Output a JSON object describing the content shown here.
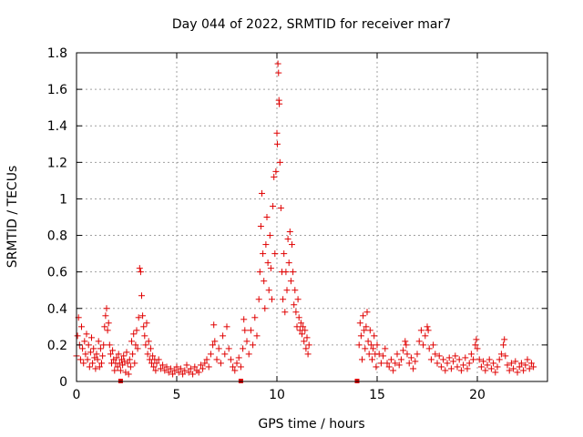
{
  "chart_data": {
    "type": "scatter",
    "title": "Day 044 of 2022, SRMTID for receiver mar7",
    "xlabel": "GPS time / hours",
    "ylabel": "SRMTID / TECUs",
    "xlim": [
      0,
      23.5
    ],
    "ylim": [
      0,
      1.8
    ],
    "x_ticks": [
      0,
      5,
      10,
      15,
      20
    ],
    "x_tick_labels": [
      "0",
      "5",
      "10",
      "15",
      "20"
    ],
    "y_ticks": [
      0,
      0.2,
      0.4,
      0.6,
      0.8,
      1,
      1.2,
      1.4,
      1.6,
      1.8
    ],
    "y_tick_labels": [
      "0",
      "0.2",
      "0.4",
      "0.6",
      "0.8",
      "1",
      "1.2",
      "1.4",
      "1.6",
      "1.8"
    ],
    "grid": true,
    "marker": "plus",
    "color": "#e00000",
    "zero_markers_x": [
      2.2,
      8.2,
      14.0
    ],
    "data_gap": [
      11.6,
      14.1
    ],
    "series": [
      {
        "points": [
          [
            0.0,
            0.14
          ],
          [
            0.05,
            0.25
          ],
          [
            0.1,
            0.35
          ],
          [
            0.15,
            0.2
          ],
          [
            0.2,
            0.12
          ],
          [
            0.25,
            0.3
          ],
          [
            0.3,
            0.18
          ],
          [
            0.35,
            0.1
          ],
          [
            0.4,
            0.22
          ],
          [
            0.45,
            0.15
          ],
          [
            0.5,
            0.26
          ],
          [
            0.55,
            0.12
          ],
          [
            0.6,
            0.2
          ],
          [
            0.65,
            0.08
          ],
          [
            0.7,
            0.16
          ],
          [
            0.75,
            0.24
          ],
          [
            0.8,
            0.1
          ],
          [
            0.85,
            0.18
          ],
          [
            0.9,
            0.13
          ],
          [
            0.95,
            0.07
          ],
          [
            1.0,
            0.15
          ],
          [
            1.05,
            0.12
          ],
          [
            1.1,
            0.22
          ],
          [
            1.15,
            0.08
          ],
          [
            1.2,
            0.18
          ],
          [
            1.25,
            0.1
          ],
          [
            1.3,
            0.14
          ],
          [
            1.35,
            0.2
          ],
          [
            1.4,
            0.3
          ],
          [
            1.45,
            0.36
          ],
          [
            1.5,
            0.4
          ],
          [
            1.55,
            0.28
          ],
          [
            1.6,
            0.32
          ],
          [
            1.65,
            0.2
          ],
          [
            1.7,
            0.15
          ],
          [
            1.75,
            0.1
          ],
          [
            1.8,
            0.17
          ],
          [
            1.85,
            0.12
          ],
          [
            1.9,
            0.06
          ],
          [
            1.95,
            0.1
          ],
          [
            2.0,
            0.13
          ],
          [
            2.05,
            0.08
          ],
          [
            2.1,
            0.15
          ],
          [
            2.15,
            0.1
          ],
          [
            2.2,
            0.06
          ],
          [
            2.25,
            0.12
          ],
          [
            2.3,
            0.09
          ],
          [
            2.35,
            0.14
          ],
          [
            2.4,
            0.11
          ],
          [
            2.45,
            0.05
          ],
          [
            2.5,
            0.16
          ],
          [
            2.55,
            0.1
          ],
          [
            2.6,
            0.04
          ],
          [
            2.65,
            0.12
          ],
          [
            2.7,
            0.08
          ],
          [
            2.75,
            0.22
          ],
          [
            2.8,
            0.15
          ],
          [
            2.85,
            0.26
          ],
          [
            2.9,
            0.1
          ],
          [
            2.95,
            0.2
          ],
          [
            3.0,
            0.28
          ],
          [
            3.05,
            0.18
          ],
          [
            3.1,
            0.35
          ],
          [
            3.15,
            0.62
          ],
          [
            3.2,
            0.6
          ],
          [
            3.25,
            0.47
          ],
          [
            3.3,
            0.36
          ],
          [
            3.35,
            0.3
          ],
          [
            3.4,
            0.25
          ],
          [
            3.45,
            0.2
          ],
          [
            3.5,
            0.32
          ],
          [
            3.55,
            0.15
          ],
          [
            3.6,
            0.22
          ],
          [
            3.65,
            0.12
          ],
          [
            3.7,
            0.18
          ],
          [
            3.75,
            0.1
          ],
          [
            3.8,
            0.14
          ],
          [
            3.85,
            0.08
          ],
          [
            3.9,
            0.12
          ],
          [
            3.95,
            0.06
          ],
          [
            4.0,
            0.1
          ],
          [
            4.1,
            0.12
          ],
          [
            4.2,
            0.07
          ],
          [
            4.3,
            0.09
          ],
          [
            4.4,
            0.06
          ],
          [
            4.5,
            0.08
          ],
          [
            4.6,
            0.05
          ],
          [
            4.7,
            0.07
          ],
          [
            4.8,
            0.04
          ],
          [
            4.9,
            0.06
          ],
          [
            5.0,
            0.08
          ],
          [
            5.1,
            0.05
          ],
          [
            5.2,
            0.07
          ],
          [
            5.3,
            0.04
          ],
          [
            5.4,
            0.06
          ],
          [
            5.5,
            0.09
          ],
          [
            5.6,
            0.05
          ],
          [
            5.7,
            0.07
          ],
          [
            5.8,
            0.04
          ],
          [
            5.9,
            0.08
          ],
          [
            6.0,
            0.06
          ],
          [
            6.1,
            0.05
          ],
          [
            6.2,
            0.09
          ],
          [
            6.3,
            0.07
          ],
          [
            6.4,
            0.1
          ],
          [
            6.5,
            0.12
          ],
          [
            6.6,
            0.08
          ],
          [
            6.7,
            0.15
          ],
          [
            6.8,
            0.2
          ],
          [
            6.85,
            0.31
          ],
          [
            6.9,
            0.22
          ],
          [
            7.0,
            0.12
          ],
          [
            7.1,
            0.18
          ],
          [
            7.2,
            0.1
          ],
          [
            7.3,
            0.25
          ],
          [
            7.4,
            0.15
          ],
          [
            7.5,
            0.3
          ],
          [
            7.6,
            0.18
          ],
          [
            7.7,
            0.12
          ],
          [
            7.8,
            0.08
          ],
          [
            7.9,
            0.06
          ],
          [
            8.0,
            0.1
          ],
          [
            8.1,
            0.13
          ],
          [
            8.2,
            0.08
          ],
          [
            8.3,
            0.18
          ],
          [
            8.35,
            0.34
          ],
          [
            8.4,
            0.28
          ],
          [
            8.5,
            0.22
          ],
          [
            8.6,
            0.15
          ],
          [
            8.7,
            0.28
          ],
          [
            8.8,
            0.2
          ],
          [
            8.9,
            0.35
          ],
          [
            9.0,
            0.25
          ],
          [
            9.1,
            0.45
          ],
          [
            9.15,
            0.6
          ],
          [
            9.2,
            0.85
          ],
          [
            9.25,
            1.03
          ],
          [
            9.3,
            0.7
          ],
          [
            9.35,
            0.55
          ],
          [
            9.4,
            0.4
          ],
          [
            9.45,
            0.75
          ],
          [
            9.5,
            0.9
          ],
          [
            9.55,
            0.65
          ],
          [
            9.6,
            0.5
          ],
          [
            9.65,
            0.8
          ],
          [
            9.7,
            0.62
          ],
          [
            9.75,
            0.45
          ],
          [
            9.8,
            0.96
          ],
          [
            9.85,
            1.12
          ],
          [
            9.9,
            0.7
          ],
          [
            9.95,
            1.15
          ],
          [
            10.0,
            1.36
          ],
          [
            10.02,
            1.3
          ],
          [
            10.05,
            1.74
          ],
          [
            10.08,
            1.69
          ],
          [
            10.1,
            1.54
          ],
          [
            10.12,
            1.52
          ],
          [
            10.15,
            1.2
          ],
          [
            10.2,
            0.95
          ],
          [
            10.25,
            0.6
          ],
          [
            10.3,
            0.45
          ],
          [
            10.35,
            0.7
          ],
          [
            10.4,
            0.38
          ],
          [
            10.45,
            0.6
          ],
          [
            10.5,
            0.5
          ],
          [
            10.55,
            0.78
          ],
          [
            10.6,
            0.65
          ],
          [
            10.65,
            0.82
          ],
          [
            10.7,
            0.55
          ],
          [
            10.75,
            0.75
          ],
          [
            10.8,
            0.6
          ],
          [
            10.85,
            0.42
          ],
          [
            10.9,
            0.5
          ],
          [
            10.95,
            0.38
          ],
          [
            11.0,
            0.3
          ],
          [
            11.05,
            0.45
          ],
          [
            11.1,
            0.35
          ],
          [
            11.15,
            0.28
          ],
          [
            11.2,
            0.32
          ],
          [
            11.25,
            0.26
          ],
          [
            11.3,
            0.3
          ],
          [
            11.35,
            0.22
          ],
          [
            11.4,
            0.28
          ],
          [
            11.45,
            0.18
          ],
          [
            11.5,
            0.24
          ],
          [
            11.55,
            0.15
          ],
          [
            11.6,
            0.2
          ],
          [
            14.1,
            0.2
          ],
          [
            14.15,
            0.32
          ],
          [
            14.2,
            0.25
          ],
          [
            14.25,
            0.12
          ],
          [
            14.3,
            0.36
          ],
          [
            14.35,
            0.28
          ],
          [
            14.4,
            0.18
          ],
          [
            14.45,
            0.3
          ],
          [
            14.5,
            0.38
          ],
          [
            14.55,
            0.22
          ],
          [
            14.6,
            0.15
          ],
          [
            14.65,
            0.28
          ],
          [
            14.7,
            0.2
          ],
          [
            14.75,
            0.12
          ],
          [
            14.8,
            0.18
          ],
          [
            14.85,
            0.25
          ],
          [
            14.9,
            0.15
          ],
          [
            14.95,
            0.08
          ],
          [
            15.0,
            0.2
          ],
          [
            15.1,
            0.15
          ],
          [
            15.2,
            0.1
          ],
          [
            15.3,
            0.14
          ],
          [
            15.4,
            0.18
          ],
          [
            15.5,
            0.1
          ],
          [
            15.6,
            0.08
          ],
          [
            15.7,
            0.12
          ],
          [
            15.8,
            0.06
          ],
          [
            15.9,
            0.1
          ],
          [
            16.0,
            0.15
          ],
          [
            16.1,
            0.09
          ],
          [
            16.2,
            0.12
          ],
          [
            16.3,
            0.17
          ],
          [
            16.4,
            0.22
          ],
          [
            16.45,
            0.2
          ],
          [
            16.5,
            0.15
          ],
          [
            16.6,
            0.1
          ],
          [
            16.7,
            0.13
          ],
          [
            16.8,
            0.07
          ],
          [
            16.9,
            0.11
          ],
          [
            17.0,
            0.15
          ],
          [
            17.1,
            0.22
          ],
          [
            17.2,
            0.28
          ],
          [
            17.3,
            0.2
          ],
          [
            17.4,
            0.25
          ],
          [
            17.5,
            0.3
          ],
          [
            17.55,
            0.28
          ],
          [
            17.6,
            0.18
          ],
          [
            17.7,
            0.12
          ],
          [
            17.8,
            0.2
          ],
          [
            17.9,
            0.15
          ],
          [
            18.0,
            0.1
          ],
          [
            18.1,
            0.14
          ],
          [
            18.2,
            0.08
          ],
          [
            18.3,
            0.12
          ],
          [
            18.4,
            0.06
          ],
          [
            18.5,
            0.1
          ],
          [
            18.6,
            0.13
          ],
          [
            18.7,
            0.07
          ],
          [
            18.8,
            0.11
          ],
          [
            18.9,
            0.14
          ],
          [
            19.0,
            0.08
          ],
          [
            19.1,
            0.12
          ],
          [
            19.2,
            0.06
          ],
          [
            19.3,
            0.09
          ],
          [
            19.4,
            0.13
          ],
          [
            19.5,
            0.07
          ],
          [
            19.6,
            0.1
          ],
          [
            19.7,
            0.15
          ],
          [
            19.8,
            0.12
          ],
          [
            19.9,
            0.2
          ],
          [
            19.95,
            0.23
          ],
          [
            20.0,
            0.18
          ],
          [
            20.1,
            0.12
          ],
          [
            20.2,
            0.08
          ],
          [
            20.3,
            0.11
          ],
          [
            20.4,
            0.06
          ],
          [
            20.5,
            0.09
          ],
          [
            20.6,
            0.12
          ],
          [
            20.7,
            0.07
          ],
          [
            20.8,
            0.1
          ],
          [
            20.9,
            0.05
          ],
          [
            21.0,
            0.08
          ],
          [
            21.1,
            0.12
          ],
          [
            21.2,
            0.15
          ],
          [
            21.3,
            0.2
          ],
          [
            21.35,
            0.23
          ],
          [
            21.4,
            0.14
          ],
          [
            21.5,
            0.09
          ],
          [
            21.6,
            0.06
          ],
          [
            21.7,
            0.1
          ],
          [
            21.8,
            0.07
          ],
          [
            21.9,
            0.11
          ],
          [
            22.0,
            0.05
          ],
          [
            22.1,
            0.08
          ],
          [
            22.2,
            0.1
          ],
          [
            22.3,
            0.06
          ],
          [
            22.4,
            0.09
          ],
          [
            22.5,
            0.12
          ],
          [
            22.6,
            0.07
          ],
          [
            22.7,
            0.1
          ],
          [
            22.8,
            0.08
          ]
        ]
      }
    ]
  }
}
